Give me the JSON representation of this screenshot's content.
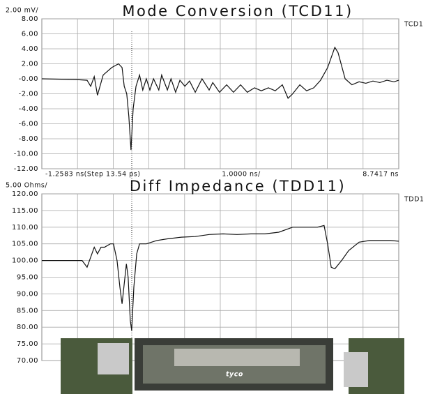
{
  "chart_data": [
    {
      "type": "line",
      "title": "Mode Conversion (TCD11)",
      "y_scale_label": "2.00 mV/",
      "x_scale_label": "1.0000 ns/",
      "xlim": [
        -1.2583,
        8.7417
      ],
      "xticks": [
        {
          "value": -1.2583,
          "label": "-1.2583 ns(Step 13.54 ps)"
        },
        {
          "value": 8.7417,
          "label": "8.7417 ns"
        }
      ],
      "ylim": [
        -12,
        8
      ],
      "yticks": [
        {
          "value": 8,
          "label": "8.00"
        },
        {
          "value": 6,
          "label": "6.00"
        },
        {
          "value": 4,
          "label": "4.00"
        },
        {
          "value": 2,
          "label": "2.00"
        },
        {
          "value": 0,
          "label": "-0.00"
        },
        {
          "value": -2,
          "label": "-2.00"
        },
        {
          "value": -4,
          "label": "-4.00"
        },
        {
          "value": -6,
          "label": "-6.00"
        },
        {
          "value": -8,
          "label": "-8.00"
        },
        {
          "value": -10,
          "label": "-10.00"
        },
        {
          "value": -12,
          "label": "-12.00"
        }
      ],
      "grid": true,
      "x": [
        -1.26,
        -0.28,
        0.01,
        0.11,
        0.21,
        0.3,
        0.46,
        0.7,
        0.89,
        0.99,
        1.05,
        1.12,
        1.18,
        1.24,
        1.3,
        1.38,
        1.48,
        1.57,
        1.67,
        1.77,
        1.87,
        2.02,
        2.1,
        2.26,
        2.36,
        2.49,
        2.61,
        2.75,
        2.88,
        3.04,
        3.23,
        3.43,
        3.53,
        3.72,
        3.92,
        4.11,
        4.31,
        4.5,
        4.7,
        4.89,
        5.09,
        5.28,
        5.48,
        5.64,
        5.77,
        5.97,
        6.16,
        6.36,
        6.55,
        6.75,
        6.95,
        7.04,
        7.24,
        7.43,
        7.63,
        7.82,
        8.02,
        8.21,
        8.41,
        8.61,
        8.74
      ],
      "series": [
        {
          "name": "TCD1",
          "color": "#111111",
          "values": [
            0.0,
            -0.1,
            -0.2,
            -1.0,
            0.3,
            -2.2,
            0.5,
            1.5,
            2.0,
            1.5,
            -1.0,
            -2.0,
            -5.0,
            -9.5,
            -4.0,
            -1.0,
            0.5,
            -1.5,
            0.0,
            -1.5,
            0.0,
            -1.5,
            0.5,
            -1.5,
            0.0,
            -1.8,
            -0.2,
            -1.0,
            -0.3,
            -1.8,
            0.0,
            -1.5,
            -0.5,
            -1.8,
            -0.8,
            -1.8,
            -0.8,
            -1.8,
            -1.2,
            -1.6,
            -1.2,
            -1.6,
            -0.8,
            -2.6,
            -2.0,
            -0.8,
            -1.6,
            -1.2,
            -0.2,
            1.5,
            4.2,
            3.5,
            0.0,
            -0.8,
            -0.4,
            -0.6,
            -0.3,
            -0.5,
            -0.2,
            -0.4,
            -0.2
          ]
        }
      ]
    },
    {
      "type": "line",
      "title": "Diff Impedance (TDD11)",
      "y_scale_label": "5.00 Ohms/",
      "xlim": [
        -1.2583,
        8.7417
      ],
      "ylim": [
        70,
        120
      ],
      "yticks": [
        {
          "value": 120,
          "label": "120.00"
        },
        {
          "value": 115,
          "label": "115.00"
        },
        {
          "value": 110,
          "label": "110.00"
        },
        {
          "value": 105,
          "label": "105.00"
        },
        {
          "value": 100,
          "label": "100.00"
        },
        {
          "value": 95,
          "label": "95.00"
        },
        {
          "value": 90,
          "label": "90.00"
        },
        {
          "value": 85,
          "label": "85.00"
        },
        {
          "value": 80,
          "label": "80.00"
        },
        {
          "value": 75,
          "label": "75.00"
        },
        {
          "value": 70,
          "label": "70.00"
        }
      ],
      "grid": true,
      "x": [
        -1.26,
        -0.13,
        0.01,
        0.11,
        0.21,
        0.3,
        0.4,
        0.5,
        0.66,
        0.75,
        0.85,
        0.93,
        0.99,
        1.05,
        1.11,
        1.16,
        1.22,
        1.26,
        1.32,
        1.4,
        1.48,
        1.67,
        1.96,
        2.26,
        2.65,
        3.04,
        3.43,
        3.82,
        4.21,
        4.6,
        4.99,
        5.38,
        5.77,
        6.16,
        6.46,
        6.65,
        6.75,
        6.85,
        6.95,
        7.14,
        7.34,
        7.63,
        7.92,
        8.21,
        8.51,
        8.74
      ],
      "series": [
        {
          "name": "TDD1",
          "color": "#111111",
          "values": [
            100,
            100,
            98,
            101,
            104,
            102,
            104,
            104,
            105,
            105,
            100,
            92,
            87,
            93,
            99,
            95,
            82,
            79,
            92,
            102,
            105,
            105,
            106,
            106.5,
            107,
            107.2,
            107.8,
            108,
            107.8,
            108,
            108,
            108.5,
            110,
            110,
            110,
            110.5,
            105,
            98,
            97.5,
            100,
            103,
            105.5,
            106,
            106,
            106,
            105.8
          ]
        }
      ]
    }
  ],
  "photo_caption": "tyco"
}
